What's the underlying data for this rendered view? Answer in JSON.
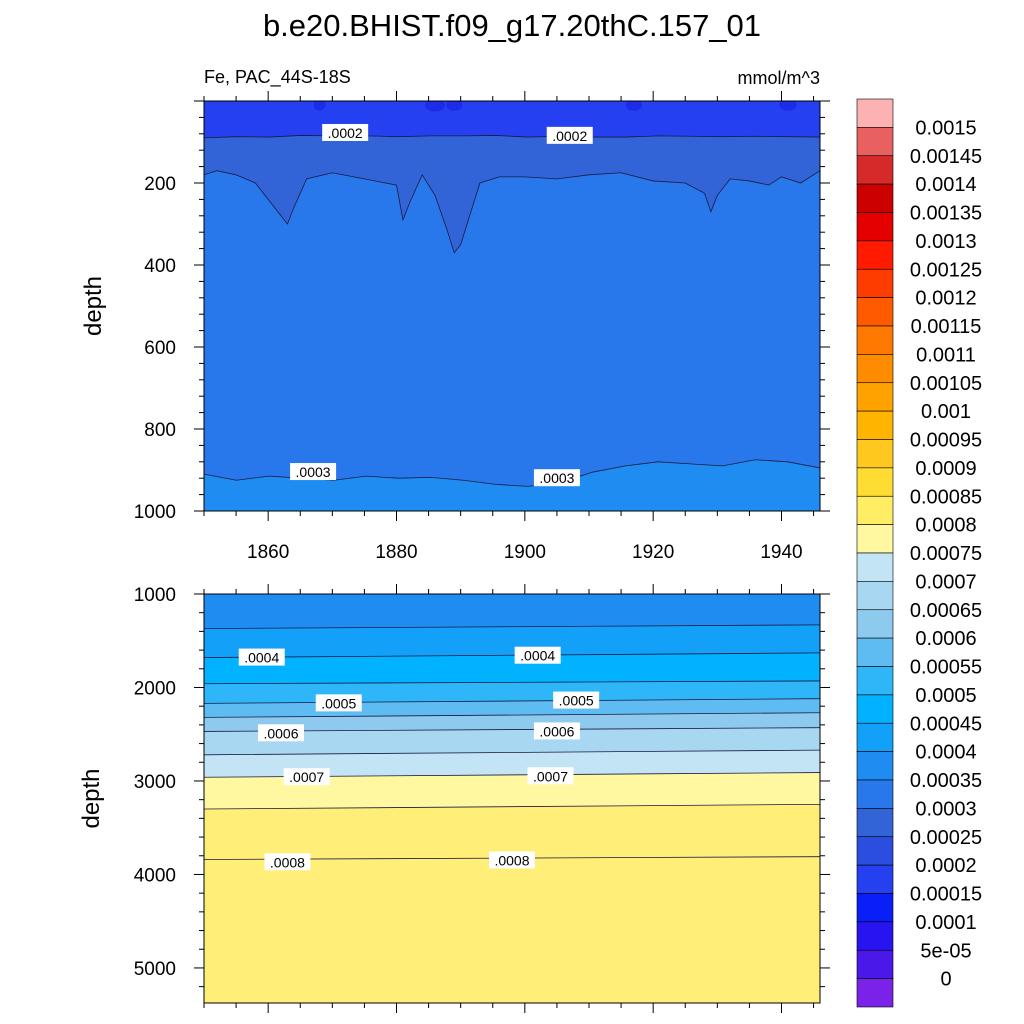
{
  "title": "b.e20.BHIST.f09_g17.20thC.157_01",
  "subtitle_left": "Fe, PAC_44S-18S",
  "subtitle_right": "mmol/m^3",
  "colorbar": {
    "levels": [
      "0.0015",
      "0.00145",
      "0.0014",
      "0.00135",
      "0.0013",
      "0.00125",
      "0.0012",
      "0.00115",
      "0.0011",
      "0.00105",
      "0.001",
      "0.00095",
      "0.0009",
      "0.00085",
      "0.0008",
      "0.00075",
      "0.0007",
      "0.00065",
      "0.0006",
      "0.00055",
      "0.0005",
      "0.00045",
      "0.0004",
      "0.00035",
      "0.0003",
      "0.00025",
      "0.0002",
      "0.00015",
      "0.0001",
      "5e-05",
      "0"
    ],
    "colors": [
      "#fdb2b2",
      "#e96060",
      "#d62a2a",
      "#cd0000",
      "#e50000",
      "#ff1a00",
      "#ff3c00",
      "#ff5a00",
      "#ff7800",
      "#ff8c00",
      "#ffa200",
      "#ffb400",
      "#ffc81e",
      "#ffdc32",
      "#ffee64",
      "#fff8a0",
      "#c2e4f5",
      "#a8d7f2",
      "#8ec9ee",
      "#5ebcf2",
      "#2eb6f8",
      "#00b2ff",
      "#12a0f8",
      "#1f8cf2",
      "#2878ec",
      "#3264d8",
      "#2c4ee0",
      "#2440f0",
      "#0a1ef8",
      "#2814f0",
      "#4a18e8",
      "#7a22e8"
    ]
  },
  "chart_data": [
    {
      "type": "heatmap",
      "name": "upper panel",
      "xlabel": "",
      "ylabel": "depth",
      "xlim": [
        1850,
        1946
      ],
      "ylim": [
        1000,
        0
      ],
      "xticks": [
        "1860",
        "1880",
        "1900",
        "1920",
        "1940"
      ],
      "yticks": [
        "200",
        "400",
        "600",
        "800",
        "1000"
      ],
      "bands": [
        {
          "from_level": "0.00015",
          "to_level": "0.0002",
          "color": "#2440f0",
          "depth_range": [
            0,
            85
          ]
        },
        {
          "from_level": "0.0002",
          "to_level": "0.00025",
          "color": "#3264d8",
          "depth_range": [
            85,
            200
          ]
        },
        {
          "from_level": "0.00025",
          "to_level": "0.0003",
          "color": "#2878ec",
          "depth_range": [
            200,
            910
          ]
        },
        {
          "from_level": "0.0003",
          "to_level": "0.00035",
          "color": "#1f8cf2",
          "depth_range": [
            910,
            1000
          ]
        }
      ],
      "contours": [
        {
          "level": 0.0002,
          "depth": [
            90,
            87,
            88,
            84,
            85,
            85,
            87,
            85,
            85,
            84,
            88,
            86,
            88,
            88,
            85,
            86,
            87,
            86,
            87,
            88
          ]
        },
        {
          "level": 0.00025,
          "x": [
            1850,
            1852,
            1855,
            1858,
            1861,
            1863,
            1864,
            1866,
            1870,
            1875,
            1880,
            1881,
            1882,
            1884,
            1886,
            1888,
            1889,
            1890,
            1893,
            1896,
            1900,
            1905,
            1910,
            1915,
            1920,
            1925,
            1928,
            1929,
            1930,
            1932,
            1935,
            1938,
            1940,
            1943,
            1946
          ],
          "depth": [
            180,
            170,
            180,
            200,
            260,
            300,
            260,
            190,
            175,
            190,
            205,
            290,
            250,
            180,
            230,
            320,
            370,
            350,
            200,
            185,
            185,
            190,
            180,
            175,
            195,
            200,
            225,
            270,
            230,
            190,
            195,
            205,
            185,
            200,
            170
          ]
        },
        {
          "level": 0.0003,
          "depth": [
            910,
            925,
            915,
            920,
            925,
            915,
            920,
            918,
            925,
            935,
            940,
            930,
            905,
            890,
            880,
            885,
            890,
            875,
            880,
            895
          ]
        }
      ],
      "contour_labels": [
        {
          "text": ".0002",
          "x": 1872,
          "depth": 78
        },
        {
          "text": ".0002",
          "x": 1907,
          "depth": 85
        },
        {
          "text": ".0003",
          "x": 1867,
          "depth": 905
        },
        {
          "text": ".0003",
          "x": 1905,
          "depth": 920
        }
      ]
    },
    {
      "type": "heatmap",
      "name": "lower panel",
      "xlabel": "",
      "ylabel": "depth",
      "xlim": [
        1850,
        1946
      ],
      "ylim": [
        5375,
        1000
      ],
      "xticks": [],
      "yticks": [
        "1000",
        "2000",
        "3000",
        "4000",
        "5000"
      ],
      "bands": [
        {
          "from_level": "0.00035",
          "to_level": "0.0004",
          "color": "#1f8cf2",
          "depth_range": [
            1000,
            1650
          ]
        },
        {
          "from_level": "0.0004",
          "to_level": "0.00045",
          "color": "#12a0f8",
          "depth_range": [
            1650,
            1950
          ]
        },
        {
          "from_level": "0.00045",
          "to_level": "0.0005",
          "color": "#00b2ff",
          "depth_range": [
            1950,
            2150
          ]
        },
        {
          "from_level": "0.0005",
          "to_level": "0.00055",
          "color": "#2eb6f8",
          "depth_range": [
            2150,
            2300
          ]
        },
        {
          "from_level": "0.00055",
          "to_level": "0.0006",
          "color": "#5ebcf2",
          "depth_range": [
            2300,
            2450
          ]
        },
        {
          "from_level": "0.0006",
          "to_level": "0.00065",
          "color": "#8ec9ee",
          "depth_range": [
            2450,
            2700
          ]
        },
        {
          "from_level": "0.00065",
          "to_level": "0.0007",
          "color": "#a8d7f2",
          "depth_range": [
            2700,
            2950
          ]
        },
        {
          "from_level": "0.0007",
          "to_level": "0.00075",
          "color": "#c2e4f5",
          "depth_range": [
            2950,
            3300
          ]
        },
        {
          "from_level": "0.00075",
          "to_level": "0.0008",
          "color": "#fff8a0",
          "depth_range": [
            3300,
            3840
          ]
        },
        {
          "from_level": "0.0008",
          "to_level": "0.00085",
          "color": "#ffee78",
          "depth_range": [
            3840,
            5375
          ]
        }
      ],
      "contours": [
        {
          "level": 0.00035,
          "depth_start": 1370,
          "depth_end": 1330
        },
        {
          "level": 0.0004,
          "depth_start": 1680,
          "depth_end": 1630
        },
        {
          "level": 0.00045,
          "depth_start": 1960,
          "depth_end": 1930
        },
        {
          "level": 0.0005,
          "depth_start": 2170,
          "depth_end": 2120
        },
        {
          "level": 0.00055,
          "depth_start": 2320,
          "depth_end": 2270
        },
        {
          "level": 0.0006,
          "depth_start": 2470,
          "depth_end": 2430
        },
        {
          "level": 0.00065,
          "depth_start": 2720,
          "depth_end": 2670
        },
        {
          "level": 0.0007,
          "depth_start": 2960,
          "depth_end": 2910
        },
        {
          "level": 0.00075,
          "depth_start": 3300,
          "depth_end": 3250
        },
        {
          "level": 0.0008,
          "depth_start": 3840,
          "depth_end": 3810
        }
      ],
      "contour_labels": [
        {
          "text": ".0004",
          "x": 1859,
          "depth": 1680
        },
        {
          "text": ".0004",
          "x": 1902,
          "depth": 1660
        },
        {
          "text": ".0005",
          "x": 1871,
          "depth": 2170
        },
        {
          "text": ".0005",
          "x": 1908,
          "depth": 2140
        },
        {
          "text": ".0006",
          "x": 1862,
          "depth": 2490
        },
        {
          "text": ".0006",
          "x": 1905,
          "depth": 2470
        },
        {
          "text": ".0007",
          "x": 1866,
          "depth": 2960
        },
        {
          "text": ".0007",
          "x": 1904,
          "depth": 2950
        },
        {
          "text": ".0008",
          "x": 1863,
          "depth": 3870
        },
        {
          "text": ".0008",
          "x": 1898,
          "depth": 3850
        }
      ]
    }
  ]
}
